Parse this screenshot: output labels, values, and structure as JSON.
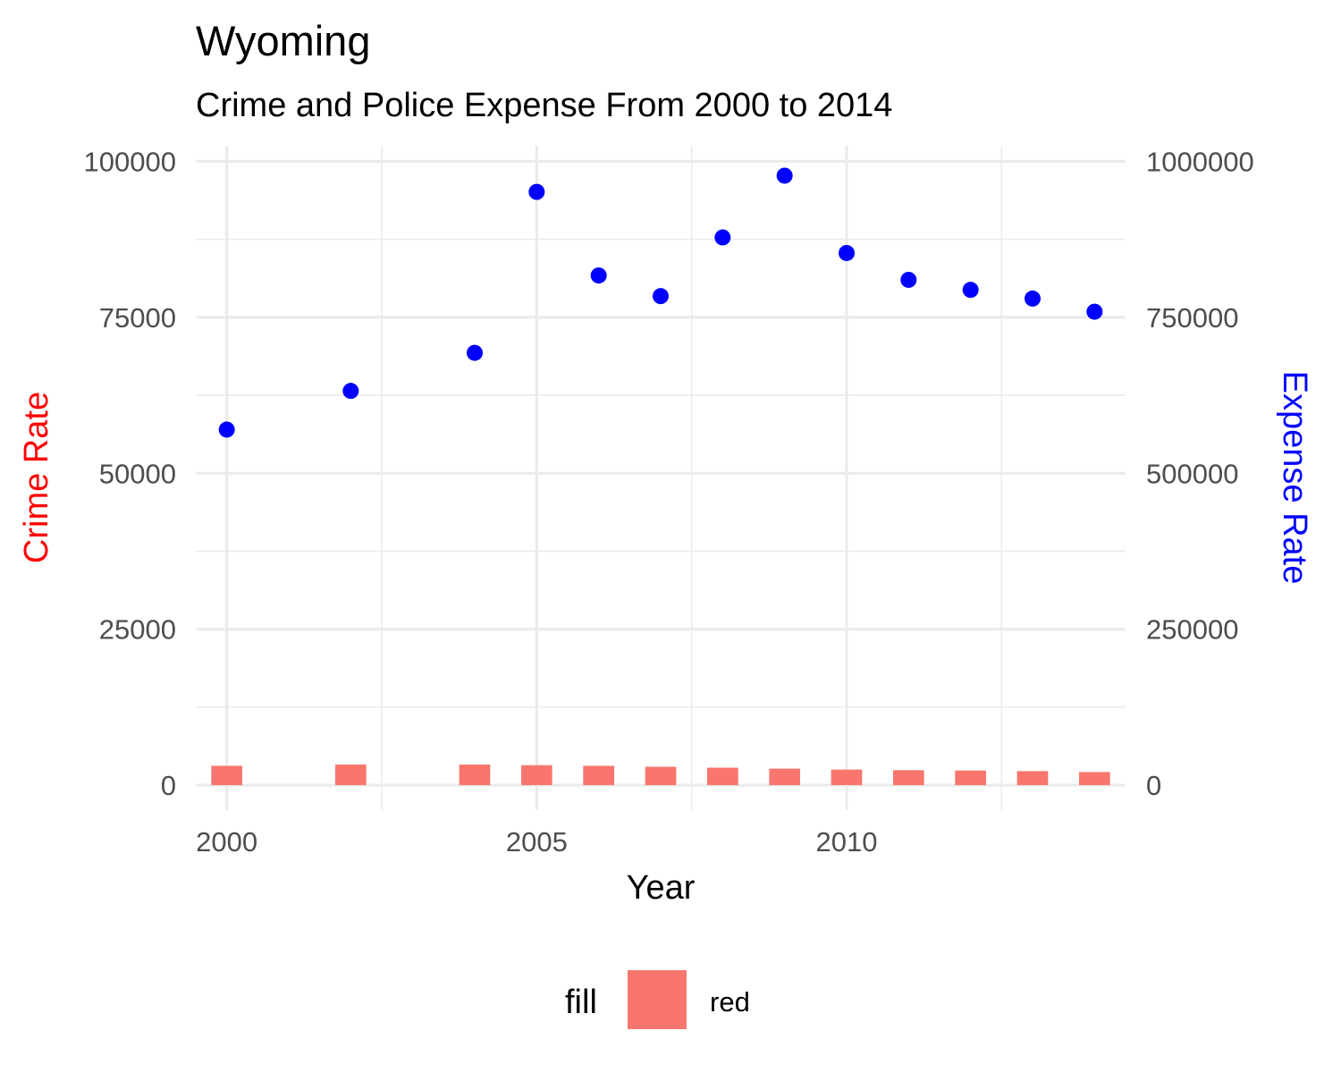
{
  "chart_data": {
    "type": "bar",
    "title": "Wyoming",
    "subtitle": "Crime and Police Expense From 2000 to 2014",
    "xlabel": "Year",
    "ylabel": "Crime Rate",
    "y2label": "Expense Rate",
    "xlim": [
      1999.5,
      2014.5
    ],
    "ylim": [
      -4000,
      102500
    ],
    "y2lim": [
      -40000,
      1025000
    ],
    "x_ticks": [
      2000,
      2005,
      2010
    ],
    "x_tick_labels": [
      "2000",
      "2005",
      "2010"
    ],
    "y_ticks": [
      0,
      25000,
      50000,
      75000,
      100000
    ],
    "y_tick_labels": [
      "0",
      "25000",
      "50000",
      "75000",
      "100000"
    ],
    "y2_ticks": [
      0,
      250000,
      500000,
      750000,
      1000000
    ],
    "y2_tick_labels": [
      "0",
      "250000",
      "500000",
      "750000",
      "1000000"
    ],
    "grid": true,
    "legend_position": "bottom",
    "legend_title": "fill",
    "series": [
      {
        "name": "red",
        "type": "bar",
        "axis": "left",
        "color": "#F8766D",
        "x": [
          2000,
          2002,
          2004,
          2005,
          2006,
          2007,
          2008,
          2009,
          2010,
          2011,
          2012,
          2013,
          2014
        ],
        "values": [
          3100,
          3300,
          3300,
          3200,
          3100,
          2950,
          2800,
          2650,
          2500,
          2400,
          2350,
          2250,
          2100
        ]
      },
      {
        "type": "scatter",
        "axis": "right",
        "color": "#0000FF",
        "x": [
          2000,
          2002,
          2004,
          2005,
          2006,
          2007,
          2008,
          2009,
          2010,
          2011,
          2012,
          2013,
          2014
        ],
        "values": [
          570000,
          632000,
          693000,
          951000,
          817000,
          784000,
          878000,
          977000,
          853000,
          810000,
          794000,
          780000,
          759000
        ]
      }
    ]
  },
  "colors": {
    "y_axis_title": "#FF0000",
    "y2_axis_title": "#0000FF",
    "grid": "#EBEBEB"
  }
}
